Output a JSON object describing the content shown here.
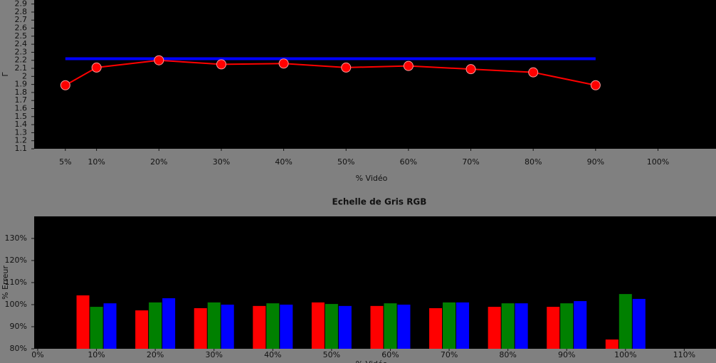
{
  "chart_data": [
    {
      "type": "line",
      "x_label": "% Vidéo",
      "y_label": "Γ",
      "x": [
        5,
        10,
        20,
        30,
        40,
        50,
        60,
        70,
        80,
        90
      ],
      "series": [
        {
          "color": "#0000ff",
          "values": [
            2.22,
            2.22,
            2.22,
            2.22,
            2.22,
            2.22,
            2.22,
            2.22,
            2.22,
            2.22
          ]
        },
        {
          "color": "#ff0000",
          "markers": true,
          "values": [
            1.89,
            2.11,
            2.2,
            2.15,
            2.16,
            2.11,
            2.13,
            2.09,
            2.05,
            1.89
          ]
        }
      ],
      "xlim": [
        0,
        109.3
      ],
      "xticks": [
        {
          "value": 5,
          "label": "5%"
        },
        {
          "value": 10,
          "label": "10%"
        },
        {
          "value": 20,
          "label": "20%"
        },
        {
          "value": 30,
          "label": "30%"
        },
        {
          "value": 40,
          "label": "40%"
        },
        {
          "value": 50,
          "label": "50%"
        },
        {
          "value": 60,
          "label": "60%"
        },
        {
          "value": 70,
          "label": "70%"
        },
        {
          "value": 80,
          "label": "80%"
        },
        {
          "value": 90,
          "label": "90%"
        },
        {
          "value": 100,
          "label": "100%"
        }
      ],
      "ylim": [
        1.1,
        2.95
      ],
      "yticks": [
        1.1,
        1.2,
        1.3,
        1.4,
        1.5,
        1.6,
        1.7,
        1.8,
        1.9,
        2,
        2.1,
        2.2,
        2.3,
        2.4,
        2.5,
        2.6,
        2.7,
        2.8,
        2.9
      ]
    },
    {
      "type": "bar",
      "title": "Echelle de Gris RGB",
      "x_label": "% Vidéo",
      "y_label": "% Erreur",
      "x": [
        10,
        20,
        30,
        40,
        50,
        60,
        70,
        80,
        90,
        100
      ],
      "series": [
        {
          "color": "#ff0000",
          "values": [
            104.2,
            97.4,
            98.4,
            99.4,
            101.0,
            99.4,
            98.4,
            99.0,
            99.0,
            84.2
          ]
        },
        {
          "color": "#008000",
          "values": [
            99.0,
            101.0,
            101.0,
            100.6,
            100.3,
            100.6,
            101.0,
            100.6,
            100.6,
            104.8
          ]
        },
        {
          "color": "#0000ff",
          "values": [
            100.6,
            102.9,
            100.0,
            100.0,
            99.4,
            100.0,
            101.0,
            100.6,
            101.6,
            102.6
          ]
        }
      ],
      "xlim": [
        -0.6,
        115.4
      ],
      "xticks": [
        {
          "value": 0,
          "label": "0%"
        },
        {
          "value": 10,
          "label": "10%"
        },
        {
          "value": 20,
          "label": "20%"
        },
        {
          "value": 30,
          "label": "30%"
        },
        {
          "value": 40,
          "label": "40%"
        },
        {
          "value": 50,
          "label": "50%"
        },
        {
          "value": 60,
          "label": "60%"
        },
        {
          "value": 70,
          "label": "70%"
        },
        {
          "value": 80,
          "label": "80%"
        },
        {
          "value": 90,
          "label": "90%"
        },
        {
          "value": 100,
          "label": "100%"
        },
        {
          "value": 110,
          "label": "110%"
        }
      ],
      "ylim": [
        80,
        140
      ],
      "yticks": [
        {
          "value": 80,
          "label": "80%"
        },
        {
          "value": 90,
          "label": "90%"
        },
        {
          "value": 100,
          "label": "100%"
        },
        {
          "value": 110,
          "label": "110%"
        },
        {
          "value": 120,
          "label": "120%"
        },
        {
          "value": 130,
          "label": "130%"
        }
      ]
    }
  ]
}
